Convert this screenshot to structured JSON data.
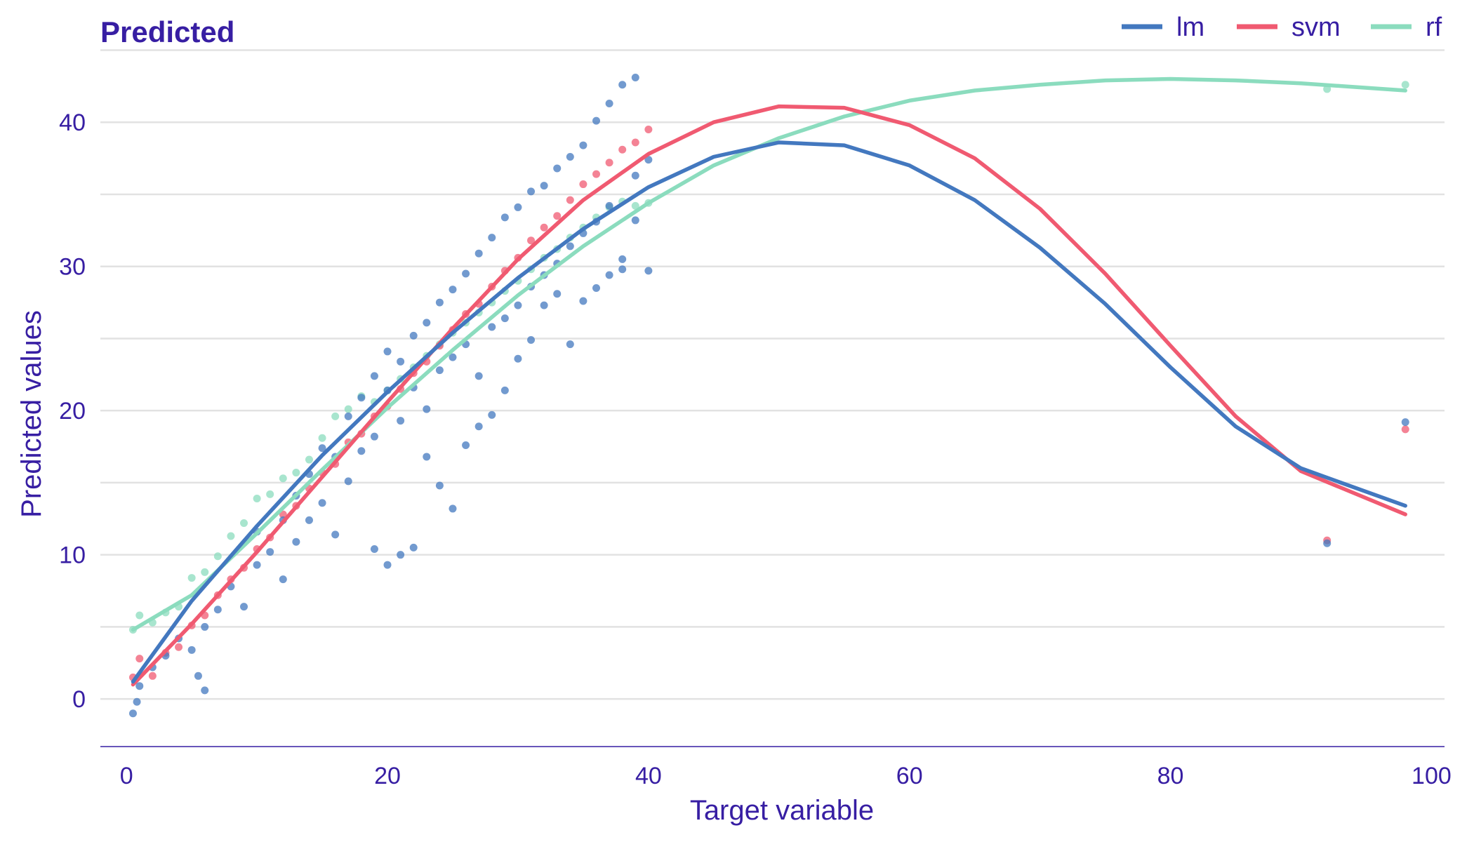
{
  "chart_data": {
    "type": "scatter",
    "title": "Predicted",
    "xlabel": "Target variable",
    "ylabel": "Predicted values",
    "xlim": [
      -2,
      101
    ],
    "ylim": [
      -3.3,
      45.8
    ],
    "xticks": [
      0,
      20,
      40,
      60,
      80,
      100
    ],
    "yticks": [
      0,
      10,
      20,
      30,
      40
    ],
    "minor_ygrid": [
      5,
      15,
      25,
      35,
      45
    ],
    "grid": "horizontal",
    "legend": {
      "placement": "top-right"
    },
    "series": [
      {
        "name": "lm",
        "color": "#4378bf",
        "smooth": [
          [
            0.5,
            1.2
          ],
          [
            5,
            6.8
          ],
          [
            10,
            12.0
          ],
          [
            15,
            16.9
          ],
          [
            20,
            21.3
          ],
          [
            25,
            25.4
          ],
          [
            30,
            29.2
          ],
          [
            35,
            32.6
          ],
          [
            40,
            35.5
          ],
          [
            45,
            37.6
          ],
          [
            50,
            38.6
          ],
          [
            55,
            38.4
          ],
          [
            60,
            37.0
          ],
          [
            65,
            34.6
          ],
          [
            70,
            31.3
          ],
          [
            75,
            27.4
          ],
          [
            80,
            23.0
          ],
          [
            85,
            18.9
          ],
          [
            90,
            16.0
          ],
          [
            98,
            13.4
          ]
        ],
        "points": [
          [
            0.5,
            -1.0
          ],
          [
            0.8,
            -0.2
          ],
          [
            1.0,
            0.9
          ],
          [
            2,
            2.2
          ],
          [
            3,
            3.0
          ],
          [
            4,
            4.2
          ],
          [
            5,
            3.4
          ],
          [
            5.5,
            1.6
          ],
          [
            6,
            0.6
          ],
          [
            6,
            5.0
          ],
          [
            7,
            6.2
          ],
          [
            8,
            7.8
          ],
          [
            9,
            6.4
          ],
          [
            10,
            9.3
          ],
          [
            10,
            11.6
          ],
          [
            11,
            10.2
          ],
          [
            12,
            12.4
          ],
          [
            12,
            8.3
          ],
          [
            13,
            14.1
          ],
          [
            13,
            10.9
          ],
          [
            14,
            15.6
          ],
          [
            14,
            12.4
          ],
          [
            15,
            13.6
          ],
          [
            15,
            17.4
          ],
          [
            16,
            16.8
          ],
          [
            16,
            11.4
          ],
          [
            17,
            19.6
          ],
          [
            17,
            15.1
          ],
          [
            18,
            17.2
          ],
          [
            18,
            20.9
          ],
          [
            19,
            10.4
          ],
          [
            19,
            22.4
          ],
          [
            19,
            18.2
          ],
          [
            20,
            9.3
          ],
          [
            20,
            21.4
          ],
          [
            20,
            24.1
          ],
          [
            21,
            10.0
          ],
          [
            21,
            19.3
          ],
          [
            21,
            23.4
          ],
          [
            22,
            10.5
          ],
          [
            22,
            25.2
          ],
          [
            22,
            21.6
          ],
          [
            23,
            16.8
          ],
          [
            23,
            26.1
          ],
          [
            23,
            20.1
          ],
          [
            24,
            14.8
          ],
          [
            24,
            27.5
          ],
          [
            24,
            22.8
          ],
          [
            25,
            13.2
          ],
          [
            25,
            28.4
          ],
          [
            25,
            23.7
          ],
          [
            26,
            17.6
          ],
          [
            26,
            29.5
          ],
          [
            26,
            24.6
          ],
          [
            27,
            18.9
          ],
          [
            27,
            30.9
          ],
          [
            27,
            22.4
          ],
          [
            28,
            19.7
          ],
          [
            28,
            32.0
          ],
          [
            28,
            25.8
          ],
          [
            29,
            21.4
          ],
          [
            29,
            33.4
          ],
          [
            29,
            26.4
          ],
          [
            30,
            23.6
          ],
          [
            30,
            34.1
          ],
          [
            30,
            27.3
          ],
          [
            31,
            24.9
          ],
          [
            31,
            35.2
          ],
          [
            31,
            28.6
          ],
          [
            32,
            27.3
          ],
          [
            32,
            35.6
          ],
          [
            32,
            29.4
          ],
          [
            33,
            28.1
          ],
          [
            33,
            36.8
          ],
          [
            33,
            30.2
          ],
          [
            34,
            24.6
          ],
          [
            34,
            37.6
          ],
          [
            34,
            31.4
          ],
          [
            35,
            27.6
          ],
          [
            35,
            38.4
          ],
          [
            35,
            32.3
          ],
          [
            36,
            28.5
          ],
          [
            36,
            40.1
          ],
          [
            36,
            33.1
          ],
          [
            37,
            29.4
          ],
          [
            37,
            41.3
          ],
          [
            37,
            34.2
          ],
          [
            38,
            30.5
          ],
          [
            38,
            42.6
          ],
          [
            38,
            29.8
          ],
          [
            39,
            43.1
          ],
          [
            39,
            33.2
          ],
          [
            39,
            36.3
          ],
          [
            40,
            29.7
          ],
          [
            40,
            37.4
          ],
          [
            92,
            10.8
          ],
          [
            98,
            19.2
          ]
        ]
      },
      {
        "name": "svm",
        "color": "#f05a71",
        "smooth": [
          [
            0.5,
            1.0
          ],
          [
            5,
            5.2
          ],
          [
            10,
            10.2
          ],
          [
            15,
            15.4
          ],
          [
            20,
            20.6
          ],
          [
            25,
            25.7
          ],
          [
            30,
            30.5
          ],
          [
            35,
            34.6
          ],
          [
            40,
            37.8
          ],
          [
            45,
            40.0
          ],
          [
            50,
            41.1
          ],
          [
            55,
            41.0
          ],
          [
            60,
            39.8
          ],
          [
            65,
            37.5
          ],
          [
            70,
            34.0
          ],
          [
            75,
            29.5
          ],
          [
            80,
            24.5
          ],
          [
            85,
            19.6
          ],
          [
            90,
            15.8
          ],
          [
            98,
            12.8
          ]
        ],
        "points": [
          [
            0.5,
            1.5
          ],
          [
            1,
            2.8
          ],
          [
            2,
            1.6
          ],
          [
            3,
            3.2
          ],
          [
            4,
            3.6
          ],
          [
            5,
            5.1
          ],
          [
            6,
            5.8
          ],
          [
            7,
            7.2
          ],
          [
            8,
            8.3
          ],
          [
            9,
            9.1
          ],
          [
            10,
            10.4
          ],
          [
            11,
            11.2
          ],
          [
            12,
            12.8
          ],
          [
            13,
            13.4
          ],
          [
            14,
            14.6
          ],
          [
            15,
            15.7
          ],
          [
            16,
            16.3
          ],
          [
            17,
            17.8
          ],
          [
            18,
            18.4
          ],
          [
            19,
            19.6
          ],
          [
            20,
            20.3
          ],
          [
            21,
            21.5
          ],
          [
            22,
            22.6
          ],
          [
            23,
            23.4
          ],
          [
            24,
            24.5
          ],
          [
            25,
            25.6
          ],
          [
            26,
            26.7
          ],
          [
            27,
            27.4
          ],
          [
            28,
            28.6
          ],
          [
            29,
            29.7
          ],
          [
            30,
            30.6
          ],
          [
            31,
            31.8
          ],
          [
            32,
            32.7
          ],
          [
            33,
            33.5
          ],
          [
            34,
            34.6
          ],
          [
            35,
            35.7
          ],
          [
            36,
            36.4
          ],
          [
            37,
            37.2
          ],
          [
            38,
            38.1
          ],
          [
            39,
            38.6
          ],
          [
            40,
            39.5
          ],
          [
            92,
            11.0
          ],
          [
            98,
            18.7
          ]
        ]
      },
      {
        "name": "rf",
        "color": "#8bdcbe",
        "smooth": [
          [
            0.5,
            4.8
          ],
          [
            5,
            7.2
          ],
          [
            10,
            11.5
          ],
          [
            15,
            15.9
          ],
          [
            20,
            20.2
          ],
          [
            25,
            24.2
          ],
          [
            30,
            28.0
          ],
          [
            35,
            31.4
          ],
          [
            40,
            34.4
          ],
          [
            45,
            37.0
          ],
          [
            50,
            38.9
          ],
          [
            55,
            40.4
          ],
          [
            60,
            41.5
          ],
          [
            65,
            42.2
          ],
          [
            70,
            42.6
          ],
          [
            75,
            42.9
          ],
          [
            80,
            43.0
          ],
          [
            85,
            42.9
          ],
          [
            90,
            42.7
          ],
          [
            98,
            42.2
          ]
        ],
        "points": [
          [
            0.5,
            4.8
          ],
          [
            1,
            5.8
          ],
          [
            2,
            5.3
          ],
          [
            3,
            6.0
          ],
          [
            4,
            6.4
          ],
          [
            5,
            8.4
          ],
          [
            6,
            8.8
          ],
          [
            7,
            9.9
          ],
          [
            8,
            11.3
          ],
          [
            9,
            12.2
          ],
          [
            10,
            13.9
          ],
          [
            11,
            14.2
          ],
          [
            12,
            15.3
          ],
          [
            13,
            15.7
          ],
          [
            14,
            16.6
          ],
          [
            15,
            18.1
          ],
          [
            16,
            19.6
          ],
          [
            17,
            20.1
          ],
          [
            18,
            21.0
          ],
          [
            19,
            20.6
          ],
          [
            20,
            21.4
          ],
          [
            21,
            22.2
          ],
          [
            22,
            23.0
          ],
          [
            23,
            23.8
          ],
          [
            24,
            24.6
          ],
          [
            25,
            25.4
          ],
          [
            26,
            26.1
          ],
          [
            27,
            26.8
          ],
          [
            28,
            27.5
          ],
          [
            29,
            28.3
          ],
          [
            30,
            29.0
          ],
          [
            31,
            29.8
          ],
          [
            32,
            30.6
          ],
          [
            33,
            31.2
          ],
          [
            34,
            32.0
          ],
          [
            35,
            32.7
          ],
          [
            36,
            33.4
          ],
          [
            37,
            34.1
          ],
          [
            38,
            34.5
          ],
          [
            39,
            34.2
          ],
          [
            40,
            34.4
          ],
          [
            92,
            42.3
          ],
          [
            98,
            42.6
          ]
        ]
      }
    ]
  }
}
